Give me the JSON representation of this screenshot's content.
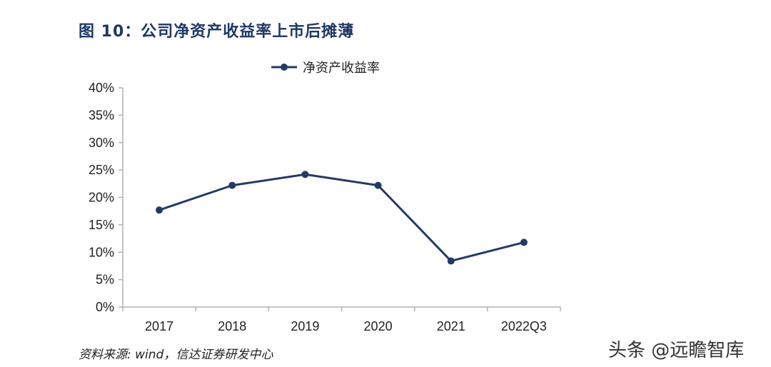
{
  "figure": {
    "title": "图 10：公司净资产收益率上市后摊薄",
    "source": "资料来源: wind，信达证券研发中心",
    "watermark": "头条 @远瞻智库"
  },
  "colors": {
    "series": "#243a66",
    "axis": "#b0b0b0",
    "title": "#1f3864"
  },
  "chart_data": {
    "type": "line",
    "title": "",
    "xlabel": "",
    "ylabel": "",
    "categories": [
      "2017",
      "2018",
      "2019",
      "2020",
      "2021",
      "2022Q3"
    ],
    "series": [
      {
        "name": "净资产收益率",
        "values": [
          0.177,
          0.222,
          0.242,
          0.222,
          0.084,
          0.118
        ]
      }
    ],
    "ylim": [
      0,
      0.4
    ],
    "yticks": [
      0,
      0.05,
      0.1,
      0.15,
      0.2,
      0.25,
      0.3,
      0.35,
      0.4
    ],
    "ytick_labels": [
      "0%",
      "5%",
      "10%",
      "15%",
      "20%",
      "25%",
      "30%",
      "35%",
      "40%"
    ],
    "grid": false,
    "legend": "top-center"
  }
}
